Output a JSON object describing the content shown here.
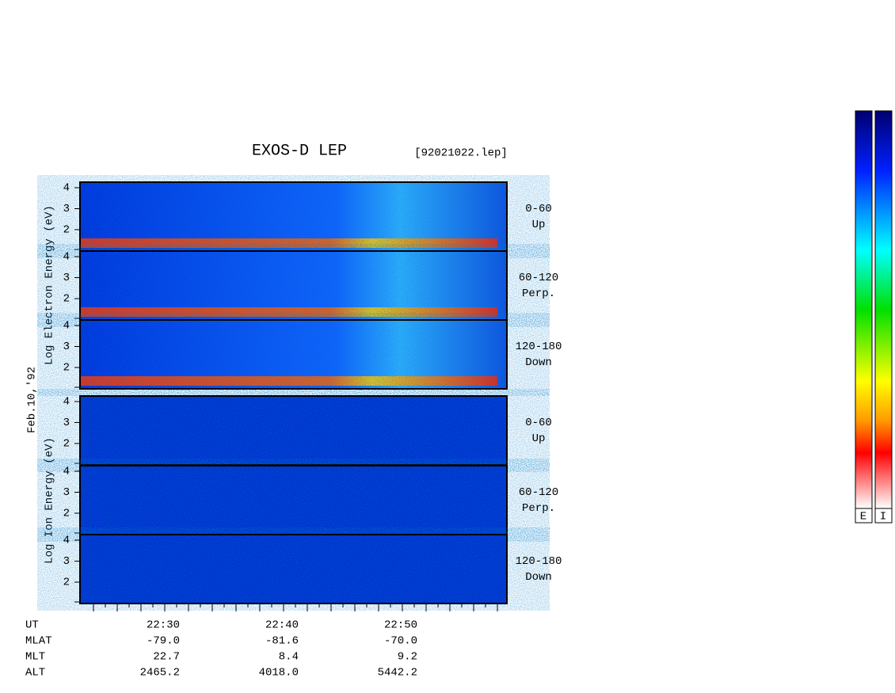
{
  "header": {
    "title": "EXOS-D LEP",
    "file": "[92021022.lep]"
  },
  "axis_labels": {
    "electron": "Log  Electron  Energy (eV)",
    "ion": "Log  Ion  Energy (eV)",
    "date": "Feb.10,'92"
  },
  "energy_ticks": [
    "4",
    "3",
    "2"
  ],
  "panels": [
    {
      "angle": "0-60",
      "direction": "Up"
    },
    {
      "angle": "60-120",
      "direction": "Perp."
    },
    {
      "angle": "120-180",
      "direction": "Down"
    },
    {
      "angle": "0-60",
      "direction": "Up"
    },
    {
      "angle": "60-120",
      "direction": "Perp."
    },
    {
      "angle": "120-180",
      "direction": "Down"
    }
  ],
  "footer": {
    "rows": [
      [
        "UT",
        "22:30",
        "22:40",
        "22:50"
      ],
      [
        "MLAT",
        "-79.0",
        "-81.6",
        "-70.0"
      ],
      [
        "MLT",
        "22.7",
        "8.4",
        "9.2"
      ],
      [
        "ALT",
        "2465.2",
        "4018.0",
        "5442.2"
      ]
    ]
  },
  "colorbar": {
    "labels": [
      "E",
      "I"
    ]
  }
}
